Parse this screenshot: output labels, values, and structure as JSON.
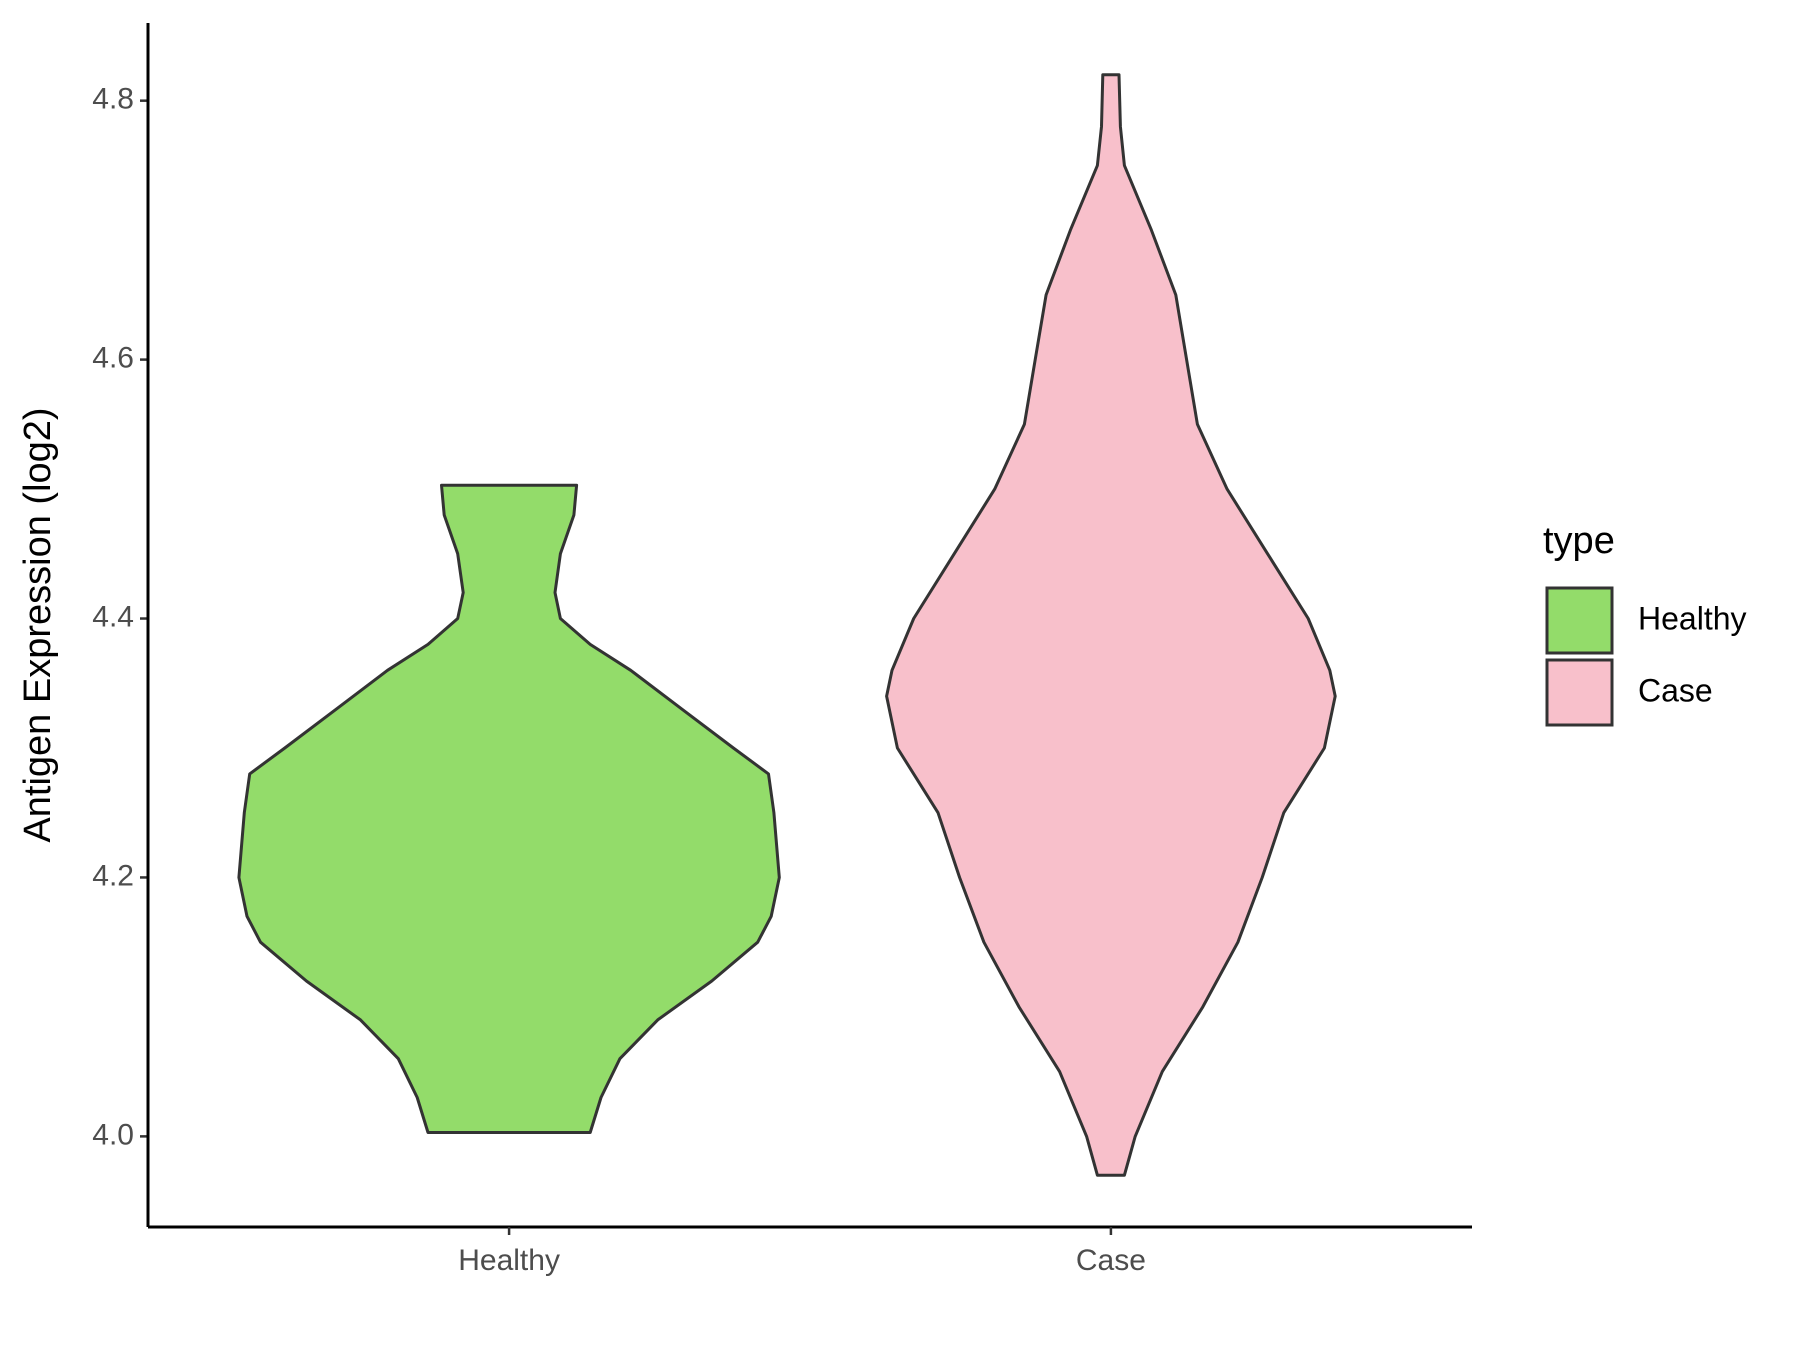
{
  "chart_data": {
    "type": "violin",
    "y_label": "Antigen Expression (log2)",
    "categories": [
      "Healthy",
      "Case"
    ],
    "legend_title": "type",
    "legend_position": "right",
    "series": [
      {
        "name": "Healthy",
        "color": "#93dc6a",
        "y": [
          4.503,
          4.48,
          4.45,
          4.42,
          4.4,
          4.38,
          4.36,
          4.33,
          4.3,
          4.28,
          4.25,
          4.2,
          4.17,
          4.15,
          4.12,
          4.09,
          4.06,
          4.03,
          4.003
        ],
        "width": [
          0.25,
          0.24,
          0.19,
          0.17,
          0.19,
          0.3,
          0.45,
          0.64,
          0.83,
          0.96,
          0.98,
          1,
          0.97,
          0.92,
          0.75,
          0.55,
          0.41,
          0.34,
          0.3
        ]
      },
      {
        "name": "Case",
        "color": "#f8c0cb",
        "y": [
          4.82,
          4.78,
          4.75,
          4.7,
          4.65,
          4.6,
          4.55,
          4.5,
          4.45,
          4.4,
          4.36,
          4.34,
          4.3,
          4.25,
          4.2,
          4.15,
          4.1,
          4.05,
          4.0,
          3.97
        ],
        "width": [
          0.03,
          0.035,
          0.05,
          0.15,
          0.24,
          0.28,
          0.32,
          0.43,
          0.58,
          0.73,
          0.81,
          0.83,
          0.79,
          0.64,
          0.56,
          0.47,
          0.34,
          0.19,
          0.09,
          0.05
        ]
      }
    ],
    "ylim": [
      3.93,
      4.86
    ],
    "yticks": [
      {
        "value": 4,
        "label": "4.0"
      },
      4.2,
      4.4,
      4.6,
      4.8
    ]
  }
}
